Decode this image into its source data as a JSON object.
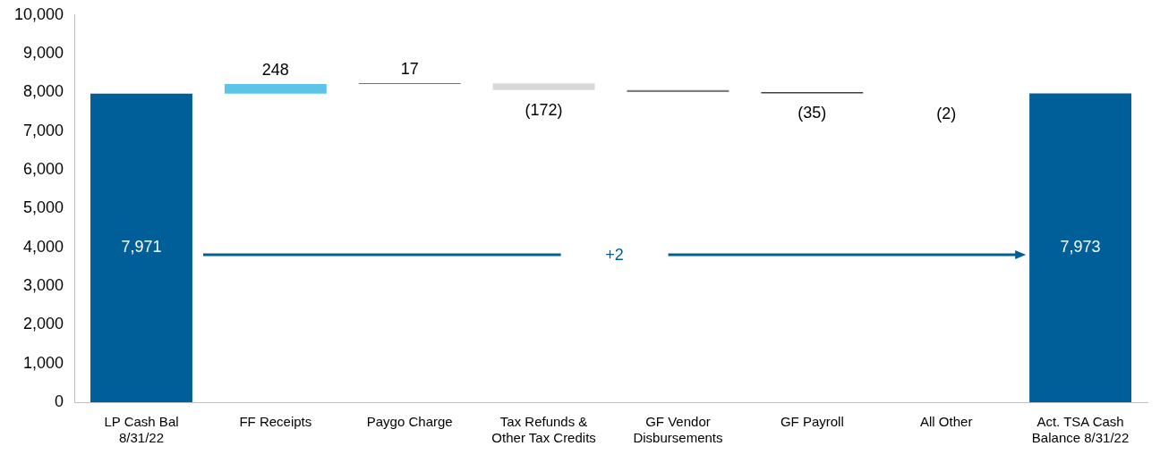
{
  "chart_data": {
    "type": "bar",
    "categories": [
      "LP Cash Bal 8/31/22",
      "FF Receipts",
      "Paygo Charge",
      "Tax Refunds & Other Tax Credits",
      "GF Vendor Disbursements",
      "GF Payroll",
      "All Other",
      "Act. TSA Cash Balance 8/31/22"
    ],
    "values": [
      7971,
      248,
      17,
      -172,
      -54,
      -35,
      -2,
      7973
    ],
    "base": [
      0,
      7971,
      8219,
      8236,
      8064,
      8010,
      7975,
      0
    ],
    "colors": [
      "#005f99",
      "#5bc4e8",
      "#404040",
      "#d9d9d9",
      "#808080",
      "#404040",
      "#404040",
      "#005f99"
    ],
    "value_labels": [
      "7,971",
      "248",
      "17",
      "(172)",
      null,
      "(35)",
      "(2)",
      "7,973"
    ],
    "ylim": [
      0,
      10000
    ],
    "yticks": [
      {
        "value": 0,
        "label": "0"
      },
      {
        "value": 1000,
        "label": "1,000"
      },
      {
        "value": 2000,
        "label": "2,000"
      },
      {
        "value": 3000,
        "label": "3,000"
      },
      {
        "value": 4000,
        "label": "4,000"
      },
      {
        "value": 5000,
        "label": "5,000"
      },
      {
        "value": 6000,
        "label": "6,000"
      },
      {
        "value": 7000,
        "label": "7,000"
      },
      {
        "value": 8000,
        "label": "8,000"
      },
      {
        "value": 9000,
        "label": "9,000"
      },
      {
        "value": 10000,
        "label": "10,000"
      }
    ],
    "annotations": [
      "+2"
    ],
    "grid": false,
    "legend": false
  }
}
